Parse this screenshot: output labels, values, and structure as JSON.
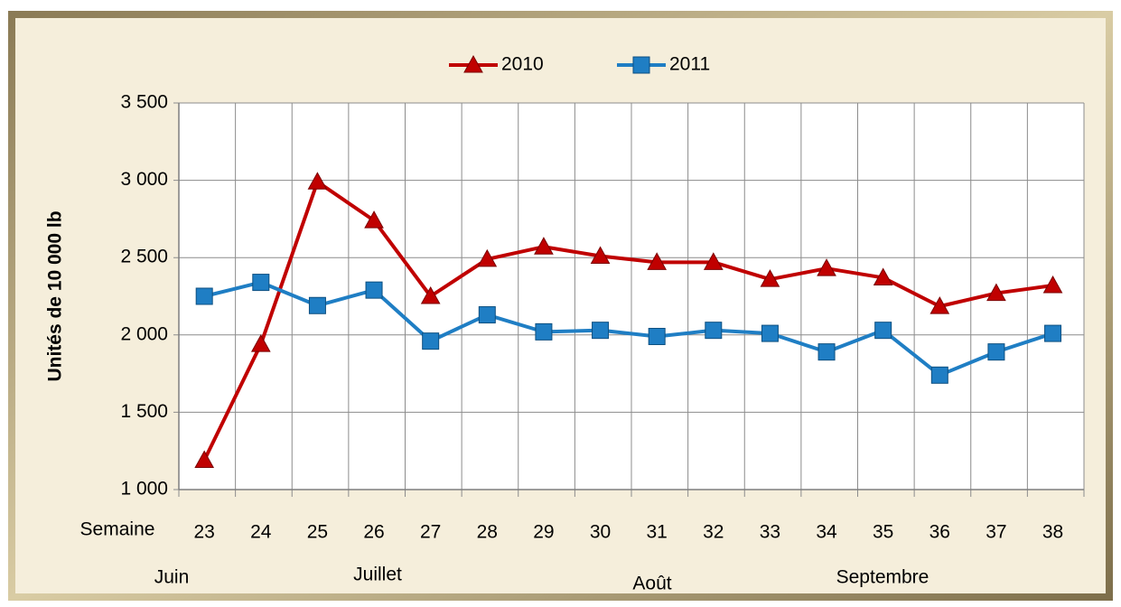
{
  "chart_data": {
    "type": "line",
    "y_axis_label": "Unités de 10 000 lb",
    "x_axis_label": "Semaine",
    "annotations": [
      "Juin",
      "Juillet",
      "Août",
      "Septembre"
    ],
    "categories": [
      "23",
      "24",
      "25",
      "26",
      "27",
      "28",
      "29",
      "30",
      "31",
      "32",
      "33",
      "34",
      "35",
      "36",
      "37",
      "38"
    ],
    "series": [
      {
        "name": "2010",
        "color": "#c00000",
        "marker": "triangle",
        "values": [
          1190,
          1940,
          2990,
          2740,
          2250,
          2490,
          2570,
          2510,
          2470,
          2470,
          2360,
          2430,
          2370,
          2185,
          2270,
          2320
        ]
      },
      {
        "name": "2011",
        "color": "#1f7ec4",
        "marker": "square",
        "values": [
          2250,
          2340,
          2190,
          2290,
          1960,
          2130,
          2020,
          2030,
          1990,
          2030,
          2010,
          1890,
          2030,
          1740,
          1890,
          2010
        ]
      }
    ],
    "ylim": [
      1000,
      3500
    ],
    "yticks": [
      {
        "value": 1000,
        "label": "1 000"
      },
      {
        "value": 1500,
        "label": "1 500"
      },
      {
        "value": 2000,
        "label": "2 000"
      },
      {
        "value": 2500,
        "label": "2 500"
      },
      {
        "value": 3000,
        "label": "3 000"
      },
      {
        "value": 3500,
        "label": "3 500"
      }
    ],
    "grid": true,
    "legend": "top"
  }
}
